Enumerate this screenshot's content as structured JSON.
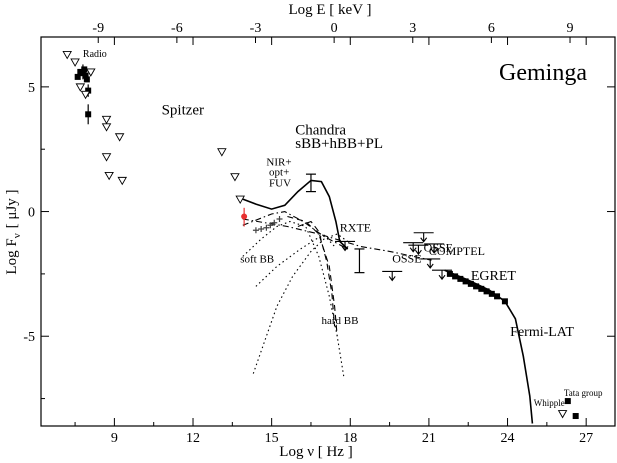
{
  "chart_data": {
    "type": "scatter",
    "title": "Geminga",
    "x_axis": {
      "label": "Log ν  [ Hz ]",
      "range": [
        6.2,
        28.1
      ],
      "ticks": [
        9,
        12,
        15,
        18,
        21,
        24,
        27
      ],
      "tick_labels": [
        "9",
        "12",
        "15",
        "18",
        "21",
        "24",
        "27"
      ]
    },
    "x2_axis": {
      "label": "Log E  [ keV ]",
      "ticks": [
        -9,
        -6,
        -3,
        0,
        3,
        6,
        9
      ],
      "tick_labels": [
        "-9",
        "-6",
        "-3",
        "0",
        "3",
        "6",
        "9"
      ],
      "relation": "log_E_keV = log_nu_Hz - 17.384"
    },
    "y_axis": {
      "label": "Log F",
      "label_sub": "ν",
      "label_unit": "[ μJy ]",
      "range": [
        -8.6,
        7.0
      ],
      "ticks": [
        5,
        0,
        -5
      ],
      "tick_labels": [
        "5",
        "0",
        "-5"
      ]
    },
    "annotations": [
      {
        "text": "Radio",
        "x": 7.8,
        "y": 6.2,
        "size": 10
      },
      {
        "text": "Spitzer",
        "x": 10.8,
        "y": 3.9,
        "size": 15
      },
      {
        "text": "Chandra",
        "x": 15.9,
        "y": 3.1,
        "size": 15
      },
      {
        "text": "sBB+hBB+PL",
        "x": 15.9,
        "y": 2.55,
        "size": 15
      },
      {
        "text": "NIR+",
        "x": 14.8,
        "y": 1.85,
        "size": 11
      },
      {
        "text": "opt+",
        "x": 14.9,
        "y": 1.45,
        "size": 11
      },
      {
        "text": "FUV",
        "x": 14.9,
        "y": 1.0,
        "size": 11
      },
      {
        "text": "RXTE",
        "x": 17.6,
        "y": -0.8,
        "size": 12
      },
      {
        "text": "OSSE",
        "x": 20.8,
        "y": -1.6,
        "size": 12
      },
      {
        "text": "COMPTEL",
        "x": 21.0,
        "y": -1.75,
        "size": 12
      },
      {
        "text": "OSSE",
        "x": 19.6,
        "y": -2.05,
        "size": 12
      },
      {
        "text": "EGRET",
        "x": 22.6,
        "y": -2.75,
        "size": 14
      },
      {
        "text": "soft BB",
        "x": 13.8,
        "y": -2.05,
        "size": 11
      },
      {
        "text": "hard BB",
        "x": 16.9,
        "y": -4.5,
        "size": 11
      },
      {
        "text": "Fermi-LAT",
        "x": 24.1,
        "y": -5.0,
        "size": 14
      },
      {
        "text": "Tata group",
        "x": 26.15,
        "y": -7.4,
        "size": 9
      },
      {
        "text": "Whipple",
        "x": 25.0,
        "y": -7.8,
        "size": 9
      }
    ],
    "series": [
      {
        "marker": "square",
        "points": [
          [
            7.6,
            5.4
          ],
          [
            7.7,
            5.6
          ],
          [
            7.8,
            5.55
          ],
          [
            7.9,
            5.45
          ],
          [
            7.85,
            5.7
          ],
          [
            7.95,
            5.3
          ],
          [
            8.0,
            4.85
          ],
          [
            8.0,
            3.9
          ],
          [
            26.3,
            -7.6
          ],
          [
            26.6,
            -8.2
          ]
        ],
        "error_bars": [
          [
            7.8,
            5.3,
            5.9
          ],
          [
            8.0,
            4.6,
            5.1
          ],
          [
            8.0,
            3.5,
            4.3
          ]
        ]
      },
      {
        "marker": "triangle-down",
        "points": [
          [
            7.2,
            6.3
          ],
          [
            7.5,
            6.0
          ],
          [
            7.7,
            5.0
          ],
          [
            7.9,
            4.7
          ],
          [
            8.1,
            5.6
          ],
          [
            8.7,
            3.7
          ],
          [
            8.7,
            3.4
          ],
          [
            9.2,
            3.0
          ],
          [
            8.7,
            2.2
          ],
          [
            8.8,
            1.45
          ],
          [
            9.3,
            1.25
          ],
          [
            13.1,
            2.4
          ],
          [
            13.6,
            1.4
          ],
          [
            13.8,
            0.5
          ],
          [
            26.1,
            -8.1
          ]
        ]
      },
      {
        "marker": "square",
        "color": "#000000",
        "points": [
          [
            21.8,
            -2.5
          ],
          [
            22.0,
            -2.6
          ],
          [
            22.2,
            -2.7
          ],
          [
            22.4,
            -2.8
          ],
          [
            22.6,
            -2.9
          ],
          [
            22.8,
            -3.0
          ],
          [
            23.0,
            -3.1
          ],
          [
            23.2,
            -3.2
          ],
          [
            23.4,
            -3.3
          ],
          [
            23.6,
            -3.4
          ],
          [
            23.9,
            -3.6
          ]
        ]
      },
      {
        "marker": "plus",
        "color": "#444444",
        "points": [
          [
            14.4,
            -0.75
          ],
          [
            14.6,
            -0.7
          ],
          [
            14.8,
            -0.65
          ],
          [
            14.95,
            -0.55
          ],
          [
            15.1,
            -0.45
          ],
          [
            15.3,
            -0.3
          ]
        ]
      },
      {
        "marker": "circle",
        "color": "#e83030",
        "points": [
          [
            13.95,
            -0.2
          ]
        ],
        "error_bars": [
          [
            13.95,
            -0.6,
            0.15
          ]
        ]
      },
      {
        "marker": "upper-limit",
        "points": [
          [
            20.8,
            -0.85
          ],
          [
            21.2,
            -1.3
          ],
          [
            21.05,
            -1.9
          ],
          [
            17.8,
            -1.2
          ],
          [
            20.4,
            -1.25
          ],
          [
            20.6,
            -1.35
          ],
          [
            21.5,
            -2.35
          ],
          [
            19.6,
            -2.4
          ]
        ]
      }
    ],
    "curves": [
      {
        "style": "solid",
        "points": [
          [
            13.9,
            0.5
          ],
          [
            14.4,
            0.3
          ],
          [
            15.0,
            0.1
          ],
          [
            15.5,
            0.25
          ],
          [
            16.0,
            0.8
          ],
          [
            16.5,
            1.25
          ],
          [
            16.9,
            1.2
          ],
          [
            17.2,
            0.6
          ],
          [
            17.45,
            -0.4
          ],
          [
            17.6,
            -1.2
          ],
          [
            17.9,
            -1.5
          ]
        ]
      },
      {
        "style": "solid",
        "points": [
          [
            21.6,
            -2.35
          ],
          [
            22.5,
            -2.75
          ],
          [
            23.3,
            -3.15
          ],
          [
            23.9,
            -3.6
          ],
          [
            24.3,
            -4.3
          ],
          [
            24.6,
            -5.8
          ],
          [
            24.85,
            -7.4
          ],
          [
            24.95,
            -8.5
          ]
        ]
      },
      {
        "style": "dash-dot",
        "points": [
          [
            13.9,
            -0.55
          ],
          [
            15.0,
            -0.1
          ],
          [
            15.5,
            0.0
          ],
          [
            16.2,
            -0.4
          ],
          [
            17.0,
            -1.0
          ],
          [
            17.9,
            -1.5
          ]
        ]
      },
      {
        "style": "dash-dot",
        "points": [
          [
            13.9,
            -0.3
          ],
          [
            15.6,
            -0.6
          ],
          [
            16.8,
            -0.9
          ],
          [
            18.4,
            -1.4
          ],
          [
            19.5,
            -1.6
          ],
          [
            21.1,
            -1.95
          ]
        ]
      },
      {
        "style": "dotted",
        "points": [
          [
            14.3,
            -6.5
          ],
          [
            14.8,
            -5.0
          ],
          [
            15.2,
            -3.8
          ],
          [
            15.8,
            -2.6
          ],
          [
            16.5,
            -1.6
          ],
          [
            17.0,
            -1.1
          ],
          [
            17.5,
            -0.9
          ],
          [
            17.9,
            -1.2
          ]
        ]
      },
      {
        "style": "dotted",
        "points": [
          [
            13.9,
            -1.8
          ],
          [
            14.6,
            -1.1
          ],
          [
            15.2,
            -0.6
          ],
          [
            15.7,
            -0.4
          ],
          [
            16.3,
            -0.6
          ],
          [
            16.8,
            -1.8
          ],
          [
            17.2,
            -3.4
          ],
          [
            17.5,
            -5.0
          ],
          [
            17.75,
            -6.6
          ]
        ]
      },
      {
        "style": "dashed",
        "points": [
          [
            15.6,
            -0.2
          ],
          [
            16.3,
            -0.4
          ],
          [
            16.8,
            -0.9
          ],
          [
            17.2,
            -2.2
          ],
          [
            17.4,
            -3.8
          ],
          [
            17.5,
            -5.0
          ]
        ]
      },
      {
        "style": "dashed",
        "points": [
          [
            16.0,
            -0.6
          ],
          [
            16.5,
            -0.4
          ],
          [
            16.8,
            -0.8
          ],
          [
            17.1,
            -2.0
          ],
          [
            17.3,
            -3.3
          ],
          [
            17.4,
            -4.6
          ]
        ]
      },
      {
        "style": "dotted",
        "points": [
          [
            14.4,
            -3.0
          ],
          [
            15.2,
            -2.2
          ],
          [
            16.1,
            -1.5
          ],
          [
            16.7,
            -1.1
          ],
          [
            17.0,
            -0.95
          ],
          [
            17.4,
            -1.4
          ]
        ]
      }
    ],
    "error_bars": [
      {
        "x": 16.5,
        "y_low": 0.8,
        "y_high": 1.5,
        "cap": true
      },
      {
        "x": 18.35,
        "y_low": -2.45,
        "y_high": -1.5,
        "cap": true
      }
    ],
    "grid": false,
    "legend": "none"
  }
}
